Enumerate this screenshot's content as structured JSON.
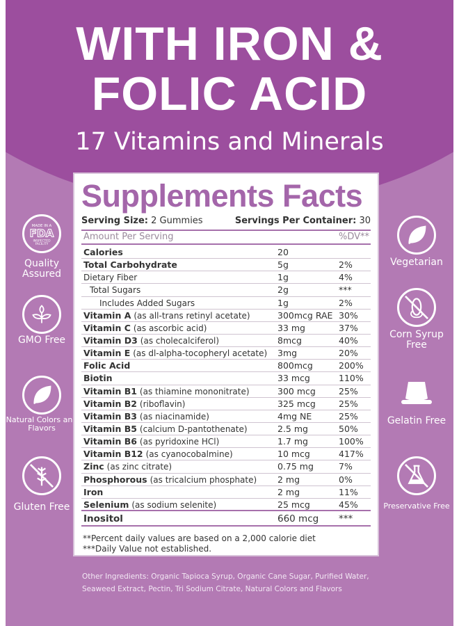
{
  "headline": {
    "line1": "WITH IRON &",
    "line2": "FOLIC ACID",
    "subtitle": "17 Vitamins and Minerals"
  },
  "label": {
    "title": "Supplements Facts",
    "serving_size_label": "Serving Size:",
    "serving_size": "2 Gummies",
    "servings_label": "Servings Per Container:",
    "servings": "30",
    "amount_header": "Amount Per Serving",
    "dv_header": "%DV**",
    "rows": [
      {
        "name": "Calories",
        "detail": "",
        "amount": "20",
        "dv": "",
        "bold": true,
        "indent": 0
      },
      {
        "name": "Total Carbohydrate",
        "detail": "",
        "amount": "5g",
        "dv": "2%",
        "bold": true,
        "indent": 0
      },
      {
        "name": "Dietary Fiber",
        "detail": "",
        "amount": "1g",
        "dv": "4%",
        "bold": false,
        "indent": 0
      },
      {
        "name": "Total Sugars",
        "detail": "",
        "amount": "2g",
        "dv": "***",
        "bold": false,
        "indent": 1
      },
      {
        "name": "Includes Added Sugars",
        "detail": "",
        "amount": "1g",
        "dv": "2%",
        "bold": false,
        "indent": 2
      },
      {
        "name": "Vitamin A",
        "detail": "(as all-trans retinyl acetate)",
        "amount": "300mcg RAE",
        "dv": "30%",
        "bold": true,
        "indent": 0
      },
      {
        "name": "Vitamin C",
        "detail": "(as ascorbic acid)",
        "amount": "33 mg",
        "dv": "37%",
        "bold": true,
        "indent": 0
      },
      {
        "name": "Vitamin D3",
        "detail": "(as cholecalciferol)",
        "amount": "8mcg",
        "dv": "40%",
        "bold": true,
        "indent": 0
      },
      {
        "name": "Vitamin E",
        "detail": "(as dl-alpha-tocopheryl acetate)",
        "amount": "3mg",
        "dv": "20%",
        "bold": true,
        "indent": 0
      },
      {
        "name": "Folic Acid",
        "detail": "",
        "amount": "800mcg",
        "dv": "200%",
        "bold": true,
        "indent": 0
      },
      {
        "name": "Biotin",
        "detail": "",
        "amount": "33 mcg",
        "dv": "110%",
        "bold": true,
        "indent": 0
      },
      {
        "name": "Vitamin B1",
        "detail": "(as thiamine mononitrate)",
        "amount": "300 mcg",
        "dv": "25%",
        "bold": true,
        "indent": 0
      },
      {
        "name": "Vitamin B2",
        "detail": "(riboflavin)",
        "amount": "325 mcg",
        "dv": "25%",
        "bold": true,
        "indent": 0
      },
      {
        "name": "Vitamin B3",
        "detail": "(as niacinamide)",
        "amount": "4mg NE",
        "dv": "25%",
        "bold": true,
        "indent": 0
      },
      {
        "name": "Vitamin B5",
        "detail": "(calcium D-pantothenate)",
        "amount": "2.5 mg",
        "dv": "50%",
        "bold": true,
        "indent": 0
      },
      {
        "name": "Vitamin B6",
        "detail": "(as pyridoxine HCl)",
        "amount": "1.7 mg",
        "dv": "100%",
        "bold": true,
        "indent": 0
      },
      {
        "name": "Vitamin B12",
        "detail": "(as cyanocobalmine)",
        "amount": "10 mcg",
        "dv": "417%",
        "bold": true,
        "indent": 0
      },
      {
        "name": "Zinc",
        "detail": "(as zinc citrate)",
        "amount": "0.75 mg",
        "dv": "7%",
        "bold": true,
        "indent": 0
      },
      {
        "name": "Phosphorous",
        "detail": "(as tricalcium phosphate)",
        "amount": "2 mg",
        "dv": "0%",
        "bold": true,
        "indent": 0
      },
      {
        "name": "Iron",
        "detail": "",
        "amount": "2 mg",
        "dv": "11%",
        "bold": true,
        "indent": 0
      },
      {
        "name": "Selenium",
        "detail": "(as sodium selenite)",
        "amount": "25 mcg",
        "dv": "45%",
        "bold": true,
        "indent": 0
      }
    ],
    "inositol": {
      "name": "Inositol",
      "amount": "660 mcg",
      "dv": "***"
    },
    "footnote1": "**Percent daily values are based on a 2,000 calorie diet",
    "footnote2": "***Daily Value not established."
  },
  "badges_left": [
    {
      "icon": "fda-icon",
      "label": "Quality Assured",
      "logo_text": "MADE IN A FDA INSPECTED FACILITY"
    },
    {
      "icon": "sprout-icon",
      "label": "GMO Free"
    },
    {
      "icon": "leaf-icon",
      "label": "Natural Colors and Flavors"
    },
    {
      "icon": "no-wheat-icon",
      "label": "Gluten Free"
    }
  ],
  "badges_right": [
    {
      "icon": "leaf-icon",
      "label": "Vegetarian"
    },
    {
      "icon": "no-corn-icon",
      "label": "Corn Syrup Free"
    },
    {
      "icon": "gelatin-icon",
      "label": "Gelatin Free"
    },
    {
      "icon": "no-flask-icon",
      "label": "Preservative Free"
    }
  ],
  "other_ingredients": "Other Ingredients: Organic Tapioca Syrup, Organic Cane Sugar, Purified Water, Seaweed Extract, Pectin, Tri Sodium Citrate, Natural Colors and Flavors",
  "colors": {
    "top_band": "#9c4e9e",
    "background": "#b37ab4",
    "title_purple": "#a466aa"
  }
}
